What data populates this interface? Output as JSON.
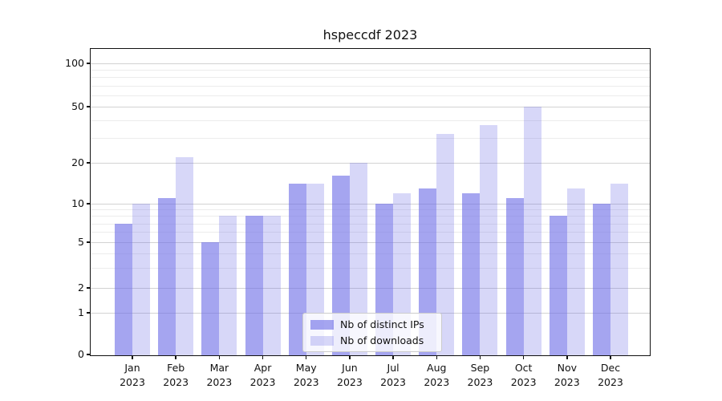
{
  "title": "hspeccdf 2023",
  "colors": {
    "distinct_ips_bar": "rgba(110,110,230,0.62)",
    "downloads_bar": "rgba(110,110,230,0.28)",
    "major_grid": "#d2d2d2",
    "minor_grid": "#ececec",
    "axis_text": "#111111"
  },
  "chart_data": {
    "type": "bar",
    "title": "hspeccdf 2023",
    "categories": [
      "Jan 2023",
      "Feb 2023",
      "Mar 2023",
      "Apr 2023",
      "May 2023",
      "Jun 2023",
      "Jul 2023",
      "Aug 2023",
      "Sep 2023",
      "Oct 2023",
      "Nov 2023",
      "Dec 2023"
    ],
    "series": [
      {
        "name": "Nb of distinct IPs",
        "values": [
          7,
          11,
          5,
          8,
          14,
          16,
          10,
          13,
          12,
          11,
          8,
          10
        ],
        "color": "rgba(110,110,230,0.62)"
      },
      {
        "name": "Nb of downloads",
        "values": [
          10,
          22,
          8,
          8,
          14,
          20,
          12,
          32,
          37,
          50,
          13,
          14
        ],
        "color": "rgba(110,110,230,0.28)"
      }
    ],
    "xlabel": "",
    "ylabel": "",
    "yscale": "symlog",
    "yticks": [
      0,
      1,
      2,
      5,
      10,
      20,
      50,
      100
    ],
    "minor_yticks": [
      3,
      4,
      6,
      7,
      8,
      9,
      30,
      40,
      60,
      70,
      80,
      90
    ],
    "ylim": [
      0,
      126
    ],
    "grid": "horizontal",
    "legend_position": "lower center"
  }
}
